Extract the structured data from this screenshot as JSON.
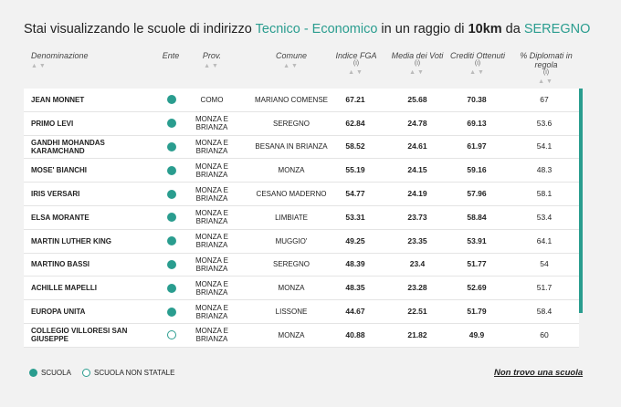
{
  "title": {
    "prefix": "Stai visualizzando le scuole di indirizzo ",
    "indirizzo": "Tecnico - Economico",
    "middle": " in un raggio di ",
    "radius": "10km",
    "da": " da ",
    "city": "SEREGNO"
  },
  "columns": {
    "name": "Denominazione",
    "ente": "Ente",
    "prov": "Prov.",
    "comune": "Comune",
    "fga": "Indice FGA",
    "voti": "Media dei Voti",
    "crediti": "Crediti Ottenuti",
    "diplomati": "% Diplomati in regola",
    "info_mark": "(i)",
    "sort_mark": "▲▼"
  },
  "rows": [
    {
      "name": "JEAN MONNET",
      "statale": true,
      "prov": "COMO",
      "comune": "MARIANO COMENSE",
      "fga": "67.21",
      "voti": "25.68",
      "crediti": "70.38",
      "diplomati": "67"
    },
    {
      "name": "PRIMO LEVI",
      "statale": true,
      "prov": "MONZA E BRIANZA",
      "comune": "SEREGNO",
      "fga": "62.84",
      "voti": "24.78",
      "crediti": "69.13",
      "diplomati": "53.6"
    },
    {
      "name": "GANDHI MOHANDAS KARAMCHAND",
      "statale": true,
      "prov": "MONZA E BRIANZA",
      "comune": "BESANA IN BRIANZA",
      "fga": "58.52",
      "voti": "24.61",
      "crediti": "61.97",
      "diplomati": "54.1"
    },
    {
      "name": "MOSE' BIANCHI",
      "statale": true,
      "prov": "MONZA E BRIANZA",
      "comune": "MONZA",
      "fga": "55.19",
      "voti": "24.15",
      "crediti": "59.16",
      "diplomati": "48.3"
    },
    {
      "name": "IRIS VERSARI",
      "statale": true,
      "prov": "MONZA E BRIANZA",
      "comune": "CESANO MADERNO",
      "fga": "54.77",
      "voti": "24.19",
      "crediti": "57.96",
      "diplomati": "58.1"
    },
    {
      "name": "ELSA MORANTE",
      "statale": true,
      "prov": "MONZA E BRIANZA",
      "comune": "LIMBIATE",
      "fga": "53.31",
      "voti": "23.73",
      "crediti": "58.84",
      "diplomati": "53.4"
    },
    {
      "name": "MARTIN LUTHER KING",
      "statale": true,
      "prov": "MONZA E BRIANZA",
      "comune": "MUGGIO'",
      "fga": "49.25",
      "voti": "23.35",
      "crediti": "53.91",
      "diplomati": "64.1"
    },
    {
      "name": "MARTINO BASSI",
      "statale": true,
      "prov": "MONZA E BRIANZA",
      "comune": "SEREGNO",
      "fga": "48.39",
      "voti": "23.4",
      "crediti": "51.77",
      "diplomati": "54"
    },
    {
      "name": "ACHILLE MAPELLI",
      "statale": true,
      "prov": "MONZA E BRIANZA",
      "comune": "MONZA",
      "fga": "48.35",
      "voti": "23.28",
      "crediti": "52.69",
      "diplomati": "51.7"
    },
    {
      "name": "EUROPA UNITA",
      "statale": true,
      "prov": "MONZA E BRIANZA",
      "comune": "LISSONE",
      "fga": "44.67",
      "voti": "22.51",
      "crediti": "51.79",
      "diplomati": "58.4"
    },
    {
      "name": "COLLEGIO VILLORESI SAN GIUSEPPE",
      "statale": false,
      "prov": "MONZA E BRIANZA",
      "comune": "MONZA",
      "fga": "40.88",
      "voti": "21.82",
      "crediti": "49.9",
      "diplomati": "60"
    }
  ],
  "legend": {
    "statale": "SCUOLA",
    "non_statale": "SCUOLA NON STATALE"
  },
  "not_found_link": "Non trovo una scuola",
  "colors": {
    "accent": "#2a9d8f",
    "background": "#f2f2f2"
  }
}
